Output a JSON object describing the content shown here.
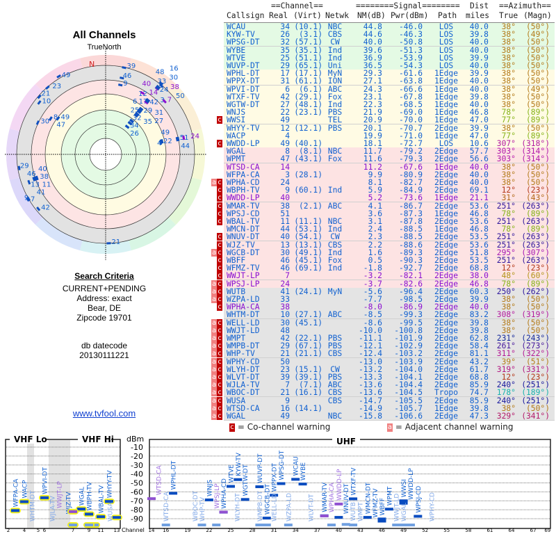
{
  "left": {
    "title": "All Channels",
    "north_label": "TrueNorth",
    "compass_n": "N",
    "criteria_heading": "Search Criteria",
    "criteria_lines": [
      "CURRENT+PENDING",
      "Address: exact",
      "Bear, DE",
      "Zipcode 19701"
    ],
    "db_label": "db datecode",
    "db_value": "20130111221",
    "link": "www.tvfool.com"
  },
  "table": {
    "group_channel": "==Channel==",
    "group_signal": "========Signal========",
    "group_dist": "Dist",
    "group_azimuth": "==Azimuth==",
    "headers": {
      "call": "Callsign",
      "real": "Real",
      "virt": "(Virt)",
      "net": "Netwk",
      "nm": "NM(dB)",
      "pwr": "Pwr(dBm)",
      "path": "Path",
      "dist": "miles",
      "az": "True",
      "mag": "(Magn)"
    },
    "rows": [
      {
        "w": "",
        "call": "WCAU",
        "real": "34",
        "virt": "(10.1)",
        "net": "NBC",
        "nm": "44.8",
        "pwr": "-46.0",
        "path": "LOS",
        "dist": "40.0",
        "az": "38°",
        "mag": "(50°)",
        "lp": false
      },
      {
        "w": "",
        "call": "KYW-TV",
        "real": "26",
        "virt": "(3.1)",
        "net": "CBS",
        "nm": "44.6",
        "pwr": "-46.3",
        "path": "LOS",
        "dist": "39.8",
        "az": "38°",
        "mag": "(49°)",
        "lp": false
      },
      {
        "w": "",
        "call": "WPSG-DT",
        "real": "32",
        "virt": "(57.1)",
        "net": "CW",
        "nm": "40.0",
        "pwr": "-50.8",
        "path": "LOS",
        "dist": "40.0",
        "az": "38°",
        "mag": "(50°)",
        "lp": false
      },
      {
        "w": "",
        "call": "WYBE",
        "real": "35",
        "virt": "(35.1)",
        "net": "Ind",
        "nm": "39.6",
        "pwr": "-51.3",
        "path": "LOS",
        "dist": "40.0",
        "az": "38°",
        "mag": "(50°)",
        "lp": false
      },
      {
        "w": "",
        "call": "WTVE",
        "real": "25",
        "virt": "(51.1)",
        "net": "Ind",
        "nm": "36.9",
        "pwr": "-53.9",
        "path": "LOS",
        "dist": "39.9",
        "az": "38°",
        "mag": "(50°)",
        "lp": false
      },
      {
        "w": "",
        "call": "WUVP-DT",
        "real": "29",
        "virt": "(65.1)",
        "net": "Uni",
        "nm": "36.5",
        "pwr": "-54.3",
        "path": "LOS",
        "dist": "40.0",
        "az": "38°",
        "mag": "(50°)",
        "lp": false
      },
      {
        "w": "",
        "call": "WPHL-DT",
        "real": "17",
        "virt": "(17.1)",
        "net": "MyN",
        "nm": "29.3",
        "pwr": "-61.6",
        "path": "1Edge",
        "dist": "39.9",
        "az": "38°",
        "mag": "(50°)",
        "lp": false
      },
      {
        "w": "",
        "call": "WPPX-DT",
        "real": "31",
        "virt": "(61.1)",
        "net": "ION",
        "nm": "27.1",
        "pwr": "-63.8",
        "path": "1Edge",
        "dist": "40.0",
        "az": "38°",
        "mag": "(50°)",
        "lp": false
      },
      {
        "w": "",
        "call": "WPVI-DT",
        "real": "6",
        "virt": "(6.1)",
        "net": "ABC",
        "nm": "24.3",
        "pwr": "-66.6",
        "path": "1Edge",
        "dist": "40.0",
        "az": "38°",
        "mag": "(49°)",
        "lp": false
      },
      {
        "w": "",
        "call": "WTXF-TV",
        "real": "42",
        "virt": "(29.1)",
        "net": "Fox",
        "nm": "23.1",
        "pwr": "-67.8",
        "path": "1Edge",
        "dist": "39.8",
        "az": "38°",
        "mag": "(50°)",
        "lp": false
      },
      {
        "w": "",
        "call": "WGTW-DT",
        "real": "27",
        "virt": "(48.1)",
        "net": "Ind",
        "nm": "22.3",
        "pwr": "-68.5",
        "path": "1Edge",
        "dist": "40.0",
        "az": "38°",
        "mag": "(50°)",
        "lp": false
      },
      {
        "w": "",
        "call": "WNJS",
        "real": "22",
        "virt": "(23.1)",
        "net": "PBS",
        "nm": "21.9",
        "pwr": "-69.0",
        "path": "1Edge",
        "dist": "46.8",
        "az": "78°",
        "mag": "(89°)",
        "lp": false
      },
      {
        "w": "c",
        "call": "WWSI",
        "real": "49",
        "virt": "",
        "net": "TEL",
        "nm": "20.9",
        "pwr": "-70.0",
        "path": "1Edge",
        "dist": "47.0",
        "az": "77°",
        "mag": "(89°)",
        "lp": false
      },
      {
        "w": "",
        "call": "WHYY-TV",
        "real": "12",
        "virt": "(12.1)",
        "net": "PBS",
        "nm": "20.1",
        "pwr": "-70.7",
        "path": "2Edge",
        "dist": "39.9",
        "az": "38°",
        "mag": "(50°)",
        "lp": false
      },
      {
        "w": "",
        "call": "WACP",
        "real": "4",
        "virt": "",
        "net": "",
        "nm": "19.9",
        "pwr": "-71.0",
        "path": "1Edge",
        "dist": "47.0",
        "az": "77°",
        "mag": "(89°)",
        "lp": false
      },
      {
        "w": "c",
        "call": "WWDD-LP",
        "real": "49",
        "virt": "(40.1)",
        "net": "",
        "nm": "18.1",
        "pwr": "-72.7",
        "path": "LOS",
        "dist": "10.6",
        "az": "307°",
        "mag": "(318°)",
        "lp": false
      },
      {
        "w": "",
        "call": "WGAL",
        "real": "8",
        "virt": "(8.1)",
        "net": "NBC",
        "nm": "11.7",
        "pwr": "-79.2",
        "path": "2Edge",
        "dist": "57.7",
        "az": "303°",
        "mag": "(314°)",
        "lp": false
      },
      {
        "w": "",
        "call": "WPMT",
        "real": "47",
        "virt": "(43.1)",
        "net": "Fox",
        "nm": "11.6",
        "pwr": "-79.3",
        "path": "2Edge",
        "dist": "56.6",
        "az": "303°",
        "mag": "(314°)",
        "lp": false
      },
      {
        "w": "",
        "call": "WTSD-CA",
        "real": "14",
        "virt": "",
        "net": "",
        "nm": "11.2",
        "pwr": "-67.6",
        "path": "1Edge",
        "dist": "40.0",
        "az": "38°",
        "mag": "(50°)",
        "lp": true
      },
      {
        "w": "",
        "call": "WFPA-CA",
        "real": "3",
        "virt": "(28.1)",
        "net": "",
        "nm": "9.9",
        "pwr": "-80.9",
        "path": "2Edge",
        "dist": "40.0",
        "az": "38°",
        "mag": "(50°)",
        "lp": false
      },
      {
        "w": "ac",
        "call": "WPHA-CD",
        "real": "24",
        "virt": "",
        "net": "",
        "nm": "8.1",
        "pwr": "-82.7",
        "path": "2Edge",
        "dist": "40.0",
        "az": "38°",
        "mag": "(50°)",
        "lp": false
      },
      {
        "w": "c",
        "call": "WBPH-TV",
        "real": "9",
        "virt": "(60.1)",
        "net": "Ind",
        "nm": "5.9",
        "pwr": "-84.9",
        "path": "2Edge",
        "dist": "69.1",
        "az": "12°",
        "mag": "(23°)",
        "lp": false
      },
      {
        "w": "c",
        "call": "WWDD-LP",
        "real": "40",
        "virt": "",
        "net": "",
        "nm": "5.2",
        "pwr": "-73.6",
        "path": "1Edge",
        "dist": "21.1",
        "az": "31°",
        "mag": "(43°)",
        "lp": true
      },
      {
        "w": "c",
        "call": "WMAR-TV",
        "real": "38",
        "virt": "(2.1)",
        "net": "ABC",
        "nm": "4.1",
        "pwr": "-86.7",
        "path": "2Edge",
        "dist": "53.6",
        "az": "251°",
        "mag": "(263°)",
        "lp": false
      },
      {
        "w": "c",
        "call": "WPSJ-CD",
        "real": "51",
        "virt": "",
        "net": "",
        "nm": "3.6",
        "pwr": "-87.3",
        "path": "1Edge",
        "dist": "46.8",
        "az": "78°",
        "mag": "(89°)",
        "lp": false
      },
      {
        "w": "c",
        "call": "WBAL-TV",
        "real": "11",
        "virt": "(11.1)",
        "net": "NBC",
        "nm": "3.1",
        "pwr": "-87.8",
        "path": "2Edge",
        "dist": "53.6",
        "az": "251°",
        "mag": "(263°)",
        "lp": false
      },
      {
        "w": "",
        "call": "WMCN-DT",
        "real": "44",
        "virt": "(53.1)",
        "net": "Ind",
        "nm": "2.4",
        "pwr": "-88.5",
        "path": "1Edge",
        "dist": "46.8",
        "az": "78°",
        "mag": "(89°)",
        "lp": false
      },
      {
        "w": "c",
        "call": "WNUV-DT",
        "real": "40",
        "virt": "(54.1)",
        "net": "CW",
        "nm": "2.3",
        "pwr": "-88.5",
        "path": "2Edge",
        "dist": "53.5",
        "az": "251°",
        "mag": "(263°)",
        "lp": false
      },
      {
        "w": "c",
        "call": "WJZ-TV",
        "real": "13",
        "virt": "(13.1)",
        "net": "CBS",
        "nm": "2.2",
        "pwr": "-88.6",
        "path": "2Edge",
        "dist": "53.6",
        "az": "251°",
        "mag": "(263°)",
        "lp": false
      },
      {
        "w": "ac",
        "call": "WGCB-DT",
        "real": "30",
        "virt": "(49.1)",
        "net": "Ind",
        "nm": "1.6",
        "pwr": "-89.3",
        "path": "2Edge",
        "dist": "51.8",
        "az": "295°",
        "mag": "(307°)",
        "lp": false
      },
      {
        "w": "c",
        "call": "WBFF",
        "real": "46",
        "virt": "(45.1)",
        "net": "Fox",
        "nm": "0.5",
        "pwr": "-90.3",
        "path": "2Edge",
        "dist": "53.5",
        "az": "251°",
        "mag": "(263°)",
        "lp": false
      },
      {
        "w": "c",
        "call": "WFMZ-TV",
        "real": "46",
        "virt": "(69.1)",
        "net": "Ind",
        "nm": "-1.8",
        "pwr": "-92.7",
        "path": "2Edge",
        "dist": "68.8",
        "az": "12°",
        "mag": "(23°)",
        "lp": false
      },
      {
        "w": "c",
        "call": "WWJT-LP",
        "real": "7",
        "virt": "",
        "net": "",
        "nm": "-3.2",
        "pwr": "-82.1",
        "path": "2Edge",
        "dist": "38.0",
        "az": "48°",
        "mag": "(60°)",
        "lp": true
      },
      {
        "w": "ac",
        "call": "WPSJ-LP",
        "real": "24",
        "virt": "",
        "net": "",
        "nm": "-3.7",
        "pwr": "-82.6",
        "path": "2Edge",
        "dist": "46.8",
        "az": "78°",
        "mag": "(89°)",
        "lp": true
      },
      {
        "w": "ac",
        "call": "WUTB",
        "real": "41",
        "virt": "(24.1)",
        "net": "MyN",
        "nm": "-5.6",
        "pwr": "-96.4",
        "path": "2Edge",
        "dist": "60.3",
        "az": "250°",
        "mag": "(262°)",
        "lp": false
      },
      {
        "w": "ac",
        "call": "WZPA-LD",
        "real": "33",
        "virt": "",
        "net": "",
        "nm": "-7.7",
        "pwr": "-98.5",
        "path": "2Edge",
        "dist": "39.9",
        "az": "38°",
        "mag": "(50°)",
        "lp": false
      },
      {
        "w": "c",
        "call": "WPHA-CA",
        "real": "38",
        "virt": "",
        "net": "",
        "nm": "-8.0",
        "pwr": "-86.9",
        "path": "2Edge",
        "dist": "40.0",
        "az": "38°",
        "mag": "(50°)",
        "lp": true
      },
      {
        "w": "",
        "call": "WHTM-DT",
        "real": "10",
        "virt": "(27.1)",
        "net": "ABC",
        "nm": "-8.5",
        "pwr": "-99.3",
        "path": "2Edge",
        "dist": "83.2",
        "az": "308°",
        "mag": "(319°)",
        "lp": false
      },
      {
        "w": "ac",
        "call": "WELL-LD",
        "real": "30",
        "virt": "(45.1)",
        "net": "",
        "nm": "-8.6",
        "pwr": "-99.5",
        "path": "2Edge",
        "dist": "39.8",
        "az": "38°",
        "mag": "(50°)",
        "lp": false
      },
      {
        "w": "ac",
        "call": "WWJT-LD",
        "real": "48",
        "virt": "",
        "net": "",
        "nm": "-10.0",
        "pwr": "-100.8",
        "path": "2Edge",
        "dist": "39.8",
        "az": "38°",
        "mag": "(50°)",
        "lp": false
      },
      {
        "w": "ac",
        "call": "WMPT",
        "real": "42",
        "virt": "(22.1)",
        "net": "PBS",
        "nm": "-11.1",
        "pwr": "-101.9",
        "path": "2Edge",
        "dist": "62.8",
        "az": "231°",
        "mag": "(243°)",
        "lp": false
      },
      {
        "w": "ac",
        "call": "WMPB-DT",
        "real": "29",
        "virt": "(67.1)",
        "net": "PBS",
        "nm": "-12.1",
        "pwr": "-102.9",
        "path": "2Edge",
        "dist": "58.4",
        "az": "261°",
        "mag": "(273°)",
        "lp": false
      },
      {
        "w": "ac",
        "call": "WHP-TV",
        "real": "21",
        "virt": "(21.1)",
        "net": "CBS",
        "nm": "-12.4",
        "pwr": "-103.2",
        "path": "2Edge",
        "dist": "81.1",
        "az": "311°",
        "mag": "(322°)",
        "lp": false
      },
      {
        "w": "ac",
        "call": "WPHY-CD",
        "real": "50",
        "virt": "",
        "net": "",
        "nm": "-13.0",
        "pwr": "-103.9",
        "path": "2Edge",
        "dist": "43.2",
        "az": "39°",
        "mag": "(51°)",
        "lp": false
      },
      {
        "w": "ac",
        "call": "WLYH-DT",
        "real": "23",
        "virt": "(15.1)",
        "net": "CW",
        "nm": "-13.2",
        "pwr": "-104.0",
        "path": "2Edge",
        "dist": "61.7",
        "az": "319°",
        "mag": "(331°)",
        "lp": false
      },
      {
        "w": "ac",
        "call": "WLVT-DT",
        "real": "39",
        "virt": "(39.1)",
        "net": "PBS",
        "nm": "-13.3",
        "pwr": "-104.1",
        "path": "2Edge",
        "dist": "68.8",
        "az": "12°",
        "mag": "(23°)",
        "lp": false
      },
      {
        "w": "ac",
        "call": "WJLA-TV",
        "real": "7",
        "virt": "(7.1)",
        "net": "ABC",
        "nm": "-13.6",
        "pwr": "-104.4",
        "path": "2Edge",
        "dist": "85.9",
        "az": "240°",
        "mag": "(251°)",
        "lp": false
      },
      {
        "w": "ac",
        "call": "WBOC-DT",
        "real": "21",
        "virt": "(16.1)",
        "net": "CBS",
        "nm": "-13.6",
        "pwr": "-104.5",
        "path": "Tropo",
        "dist": "74.7",
        "az": "178°",
        "mag": "(189°)",
        "lp": false
      },
      {
        "w": "ac",
        "call": "WUSA",
        "real": "9",
        "virt": "",
        "net": "CBS",
        "nm": "-14.7",
        "pwr": "-105.5",
        "path": "2Edge",
        "dist": "85.9",
        "az": "240°",
        "mag": "(251°)",
        "lp": false
      },
      {
        "w": "ac",
        "call": "WTSD-CA",
        "real": "16",
        "virt": "(14.1)",
        "net": "",
        "nm": "-14.9",
        "pwr": "-105.7",
        "path": "1Edge",
        "dist": "39.8",
        "az": "38°",
        "mag": "(50°)",
        "lp": false
      },
      {
        "w": "ac",
        "call": "WGAL",
        "real": "49",
        "virt": "",
        "net": "NBC",
        "nm": "-15.8",
        "pwr": "-106.6",
        "path": "2Edge",
        "dist": "47.3",
        "az": "329°",
        "mag": "(341°)",
        "lp": false
      }
    ]
  },
  "legend": {
    "c_glyph": "c",
    "c_text": "= Co-channel warning",
    "a_glyph": "a",
    "a_text": "= Adjacent channel warning"
  },
  "spectrum": {
    "vhf_lo": "VHF Lo",
    "vhf_hi": "VHF Hi",
    "uhf": "UHF",
    "unit": "dBm",
    "channel_label": "Channel",
    "y_ticks": [
      "-10",
      "-20",
      "-30",
      "-40",
      "-50",
      "-60",
      "-70",
      "-80",
      "-90"
    ],
    "vhf_ticks": [
      "2",
      "4",
      "5",
      "6",
      "7",
      "9",
      "11",
      "13"
    ],
    "uhf_ticks": [
      "14",
      "16",
      "19",
      "22",
      "25",
      "28",
      "31",
      "34",
      "37",
      "40",
      "43",
      "46",
      "49",
      "52",
      "55",
      "58",
      "61",
      "64",
      "67",
      "69"
    ]
  },
  "colors": {
    "text_blue": "#1060d0",
    "text_purple": "#8a10d0",
    "cochannel": "#c00000",
    "adjacent": "#f08080",
    "row_green": "#e4fae4",
    "row_yellow": "#fffbe4",
    "row_pink": "#fde3e3",
    "row_gray": "#e4e4e4"
  }
}
